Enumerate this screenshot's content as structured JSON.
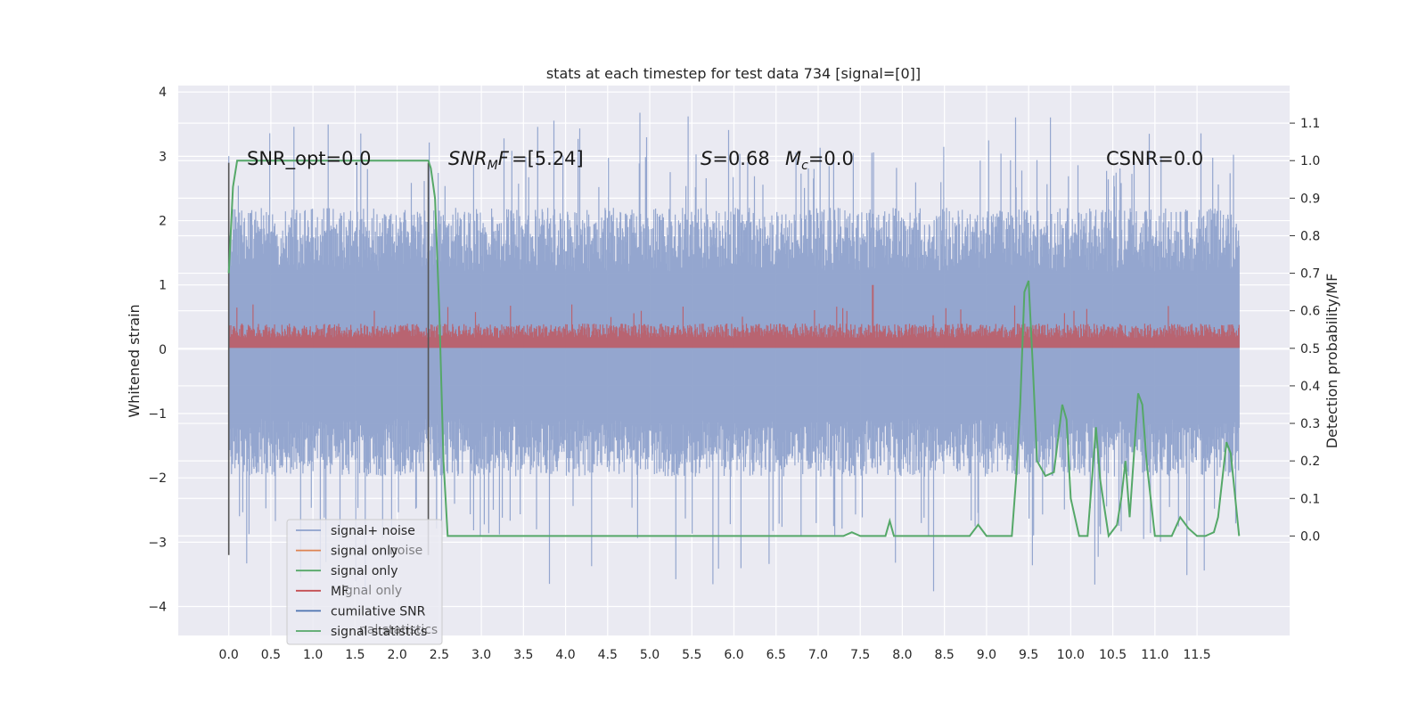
{
  "chart_data": {
    "type": "line",
    "title": "stats at each timestep for test data 734 [signal=[0]]",
    "ylabel": "Whitened strain",
    "y2label": "Detection probability/MF",
    "xlim": [
      -0.6,
      12.6
    ],
    "ylim": [
      -4.45,
      4.1
    ],
    "y2lim": [
      -0.265,
      1.2
    ],
    "x_ticks": [
      "0.0",
      "0.5",
      "1.0",
      "1.5",
      "2.0",
      "2.5",
      "3.0",
      "3.5",
      "4.0",
      "4.5",
      "5.0",
      "5.5",
      "6.0",
      "6.5",
      "7.0",
      "7.5",
      "8.0",
      "8.5",
      "9.0",
      "9.5",
      "10.0",
      "10.5",
      "11.0",
      "11.5"
    ],
    "y_ticks": [
      "4",
      "3",
      "2",
      "1",
      "0",
      "−1",
      "−2",
      "−3",
      "−4"
    ],
    "y2_ticks": [
      "1.1",
      "1.0",
      "0.9",
      "0.8",
      "0.7",
      "0.6",
      "0.5",
      "0.4",
      "0.3",
      "0.2",
      "0.1",
      "0.0"
    ],
    "grid": true,
    "legend_position": "lower-left",
    "annotations": {
      "snr_opt": "SNR_opt=0.0",
      "snr_mf_sym": "SNR",
      "snr_mf_sub": "M",
      "snr_mf_rest": "F=[5.24]",
      "s_sym": "S",
      "s_val": "=0.68",
      "mc_sym": "M",
      "mc_sub": "c",
      "mc_val": "=0.0",
      "csnr": "CSNR=0.0"
    },
    "legend": [
      {
        "label": "signal+ noise",
        "color": "#8fa2cc"
      },
      {
        "label": "signal only",
        "color": "#dd8452"
      },
      {
        "label": "signal only",
        "color": "#55a868"
      },
      {
        "label": "MF",
        "color": "#c44e52"
      },
      {
        "label": "cumilative SNR",
        "color": "#4c72b0"
      },
      {
        "label": "signal statistics",
        "color": "#55a868"
      }
    ],
    "legend_ghost": [
      "noise",
      "ignal only",
      "nal statistics"
    ],
    "series": [
      {
        "name": "signal+ noise",
        "color": "#8fa2cc",
        "x_range": [
          0.0,
          12.0
        ],
        "envelope_typical": [
          -1.8,
          2.2
        ],
        "peak": 3.7
      },
      {
        "name": "MF",
        "color": "#c44e52",
        "x_range": [
          0.0,
          12.0
        ],
        "band": [
          0.0,
          0.4
        ],
        "peak": 1.0
      },
      {
        "name": "signal statistics",
        "color": "#55a868",
        "axis": "right",
        "x": [
          0.0,
          0.05,
          0.1,
          0.2,
          0.5,
          1.0,
          1.5,
          2.0,
          2.3,
          2.37,
          2.4,
          2.45,
          2.5,
          2.55,
          2.6,
          2.7,
          2.8,
          3.0,
          4.0,
          5.0,
          6.0,
          7.0,
          7.3,
          7.4,
          7.5,
          7.8,
          7.85,
          7.9,
          8.0,
          8.2,
          8.4,
          8.6,
          8.8,
          8.9,
          9.0,
          9.2,
          9.3,
          9.35,
          9.4,
          9.45,
          9.5,
          9.55,
          9.6,
          9.7,
          9.8,
          9.9,
          9.95,
          10.0,
          10.1,
          10.2,
          10.3,
          10.35,
          10.45,
          10.55,
          10.6,
          10.65,
          10.7,
          10.8,
          10.85,
          10.9,
          11.0,
          11.2,
          11.3,
          11.4,
          11.5,
          11.6,
          11.7,
          11.75,
          11.85,
          11.9,
          12.0
        ],
        "y": [
          0.7,
          0.93,
          1.0,
          1.0,
          1.0,
          1.0,
          1.0,
          1.0,
          1.0,
          1.0,
          0.98,
          0.9,
          0.6,
          0.2,
          0.0,
          0.0,
          0.0,
          0.0,
          0.0,
          0.0,
          0.0,
          0.0,
          0.0,
          0.01,
          0.0,
          0.0,
          0.04,
          0.0,
          0.0,
          0.0,
          0.0,
          0.0,
          0.0,
          0.03,
          0.0,
          0.0,
          0.0,
          0.15,
          0.35,
          0.65,
          0.68,
          0.45,
          0.2,
          0.16,
          0.17,
          0.35,
          0.31,
          0.1,
          0.0,
          0.0,
          0.29,
          0.15,
          0.0,
          0.03,
          0.1,
          0.2,
          0.05,
          0.38,
          0.35,
          0.2,
          0.0,
          0.0,
          0.05,
          0.02,
          0.0,
          0.0,
          0.01,
          0.05,
          0.25,
          0.22,
          0.0
        ]
      }
    ],
    "vlines": [
      {
        "x": 0.0,
        "y_range": [
          -3.2,
          2.9
        ],
        "color": "#555555"
      },
      {
        "x": 2.37,
        "y_range": [
          -3.2,
          2.9
        ],
        "color": "#555555"
      }
    ]
  }
}
